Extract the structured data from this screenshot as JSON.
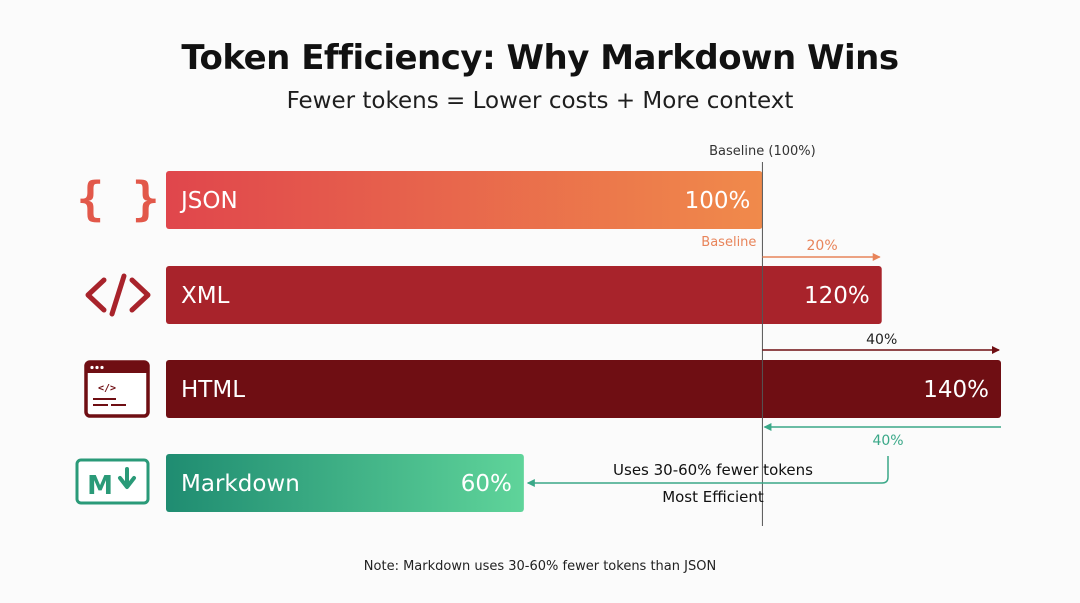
{
  "chart_data": {
    "type": "bar",
    "orientation": "horizontal",
    "title": "Token Efficiency: Why Markdown Wins",
    "subtitle": "Fewer tokens = Lower costs + More context",
    "categories": [
      "JSON",
      "XML",
      "HTML",
      "Markdown"
    ],
    "values": [
      100,
      120,
      140,
      60
    ],
    "value_labels": [
      "100%",
      "120%",
      "140%",
      "60%"
    ],
    "icons": [
      "json-braces-icon",
      "xml-code-icon",
      "html-window-icon",
      "markdown-icon"
    ],
    "baseline_value": 100,
    "baseline_label": "Baseline (100%)",
    "baseline_tag": "Baseline",
    "annotations": {
      "xml_diff": "20%",
      "html_diff": "40%",
      "markdown_diff": "40%",
      "markdown_line1": "Uses 30-60% fewer tokens",
      "markdown_line2": "Most Efficient"
    },
    "note": "Note: Markdown uses 30-60% fewer tokens than JSON"
  },
  "colors": {
    "json_start": "#e0464c",
    "json_end": "#f08a4b",
    "xml": "#a8232b",
    "html": "#6f0e13",
    "md_start": "#1f8c71",
    "md_end": "#5fd49a",
    "baseline_line": "#555555",
    "json_arrow": "#e8845a",
    "html_arrow": "#6f0e13",
    "md_arrow": "#3aa888",
    "md_icon": "#2a9a78"
  }
}
